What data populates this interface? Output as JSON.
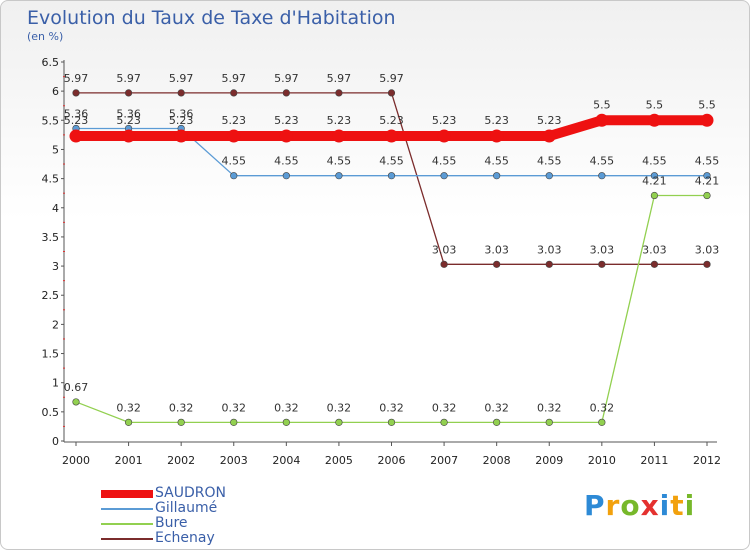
{
  "chart_data": {
    "type": "line",
    "title": "Evolution du Taux de Taxe d'Habitation",
    "subtitle": "(en %)",
    "xlabel": "",
    "ylabel": "",
    "ylim": [
      0,
      6.5
    ],
    "yticks": [
      "0",
      "0.5",
      "1",
      "1.5",
      "2",
      "2.5",
      "3",
      "3.5",
      "4",
      "4.5",
      "5",
      "5.5",
      "6",
      "6.5"
    ],
    "categories": [
      "2000",
      "2001",
      "2002",
      "2003",
      "2004",
      "2005",
      "2006",
      "2007",
      "2008",
      "2009",
      "2010",
      "2011",
      "2012"
    ],
    "series": [
      {
        "name": "SAUDRON",
        "color": "#ee1111",
        "values": [
          5.23,
          5.23,
          5.23,
          5.23,
          5.23,
          5.23,
          5.23,
          5.23,
          5.23,
          5.23,
          5.5,
          5.5,
          5.5
        ],
        "labels": [
          "5.23",
          "5.23",
          "5.23",
          "5.23",
          "5.23",
          "5.23",
          "5.23",
          "5.23",
          "5.23",
          "5.23",
          "5.5",
          "5.5",
          "5.5"
        ]
      },
      {
        "name": "Gillaumé",
        "color": "#5b9bd5",
        "values": [
          5.36,
          5.36,
          5.36,
          4.55,
          4.55,
          4.55,
          4.55,
          4.55,
          4.55,
          4.55,
          4.55,
          4.55,
          4.55
        ],
        "labels": [
          "5.36",
          "5.36",
          "5.36",
          "4.55",
          "4.55",
          "4.55",
          "4.55",
          "4.55",
          "4.55",
          "4.55",
          "4.55",
          "4.55",
          "4.55"
        ]
      },
      {
        "name": "Bure",
        "color": "#92d050",
        "values": [
          0.67,
          0.32,
          0.32,
          0.32,
          0.32,
          0.32,
          0.32,
          0.32,
          0.32,
          0.32,
          0.32,
          4.21,
          4.21
        ],
        "labels": [
          "0.67",
          "0.32",
          "0.32",
          "0.32",
          "0.32",
          "0.32",
          "0.32",
          "0.32",
          "0.32",
          "0.32",
          "0.32",
          "4.21",
          "4.21"
        ]
      },
      {
        "name": "Echenay",
        "color": "#7b2c2c",
        "values": [
          5.97,
          5.97,
          5.97,
          5.97,
          5.97,
          5.97,
          5.97,
          3.03,
          3.03,
          3.03,
          3.03,
          3.03,
          3.03
        ],
        "labels": [
          "5.97",
          "5.97",
          "5.97",
          "5.97",
          "5.97",
          "5.97",
          "5.97",
          "3.03",
          "3.03",
          "3.03",
          "3.03",
          "3.03",
          "3.03"
        ]
      }
    ],
    "legend_position": "bottom-left",
    "grid": false
  },
  "logo": {
    "letters": [
      "P",
      "r",
      "o",
      "x",
      "i",
      "t",
      "i"
    ],
    "colors": [
      "#2d8ad6",
      "#f2a10d",
      "#77b82a",
      "#e4312f",
      "#2d8ad6",
      "#f2a10d",
      "#77b82a"
    ]
  }
}
